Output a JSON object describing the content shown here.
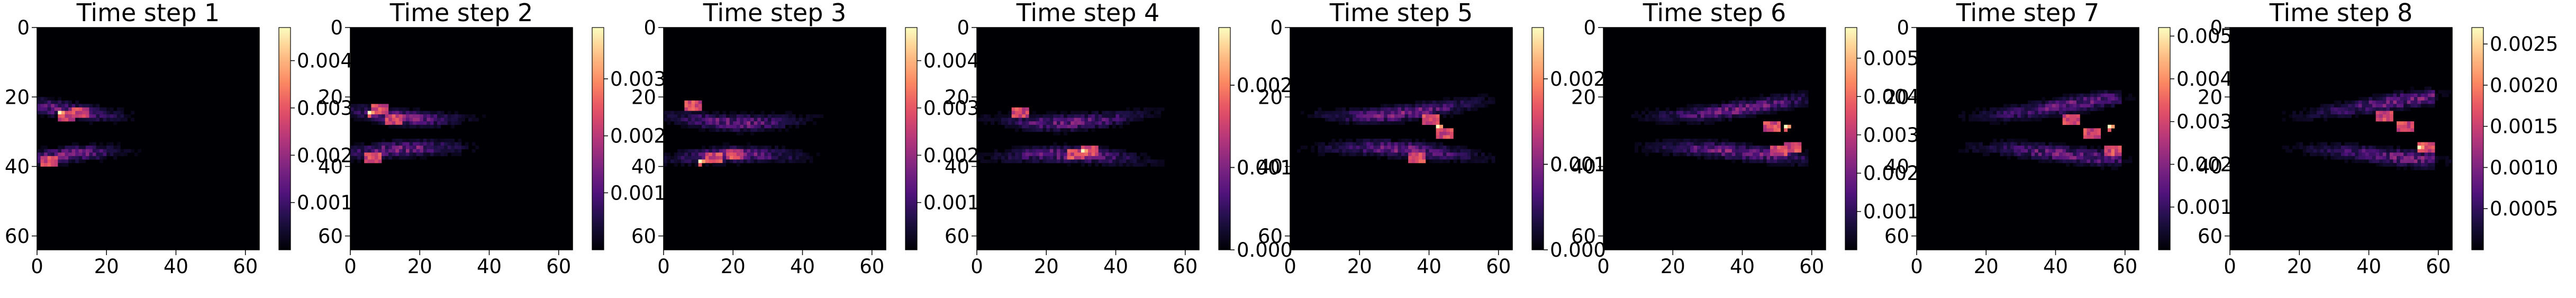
{
  "chart_data": [
    {
      "type": "heatmap",
      "title": "Time step 1",
      "xlim": [
        0,
        64
      ],
      "ylim": [
        64,
        0
      ],
      "x_ticks": [
        0,
        20,
        40,
        60
      ],
      "y_ticks": [
        0,
        20,
        40,
        60
      ],
      "colormap": "magma",
      "colorbar_ticks": [
        "0.001",
        "0.002",
        "0.003",
        "0.004"
      ],
      "colorbar_range": [
        0,
        0.0047
      ],
      "features": {
        "upper_y": 22,
        "lower_y": 37,
        "peak": [
          6,
          24
        ],
        "peak_value": 0.0047,
        "hot_spots": [
          [
            8,
            25
          ],
          [
            12,
            24
          ],
          [
            3,
            38
          ]
        ]
      }
    },
    {
      "type": "heatmap",
      "title": "Time step 2",
      "xlim": [
        0,
        64
      ],
      "ylim": [
        64,
        0
      ],
      "x_ticks": [
        0,
        20,
        40,
        60
      ],
      "y_ticks": [
        0,
        20,
        40,
        60
      ],
      "colormap": "magma",
      "colorbar_ticks": [
        "0.001",
        "0.002",
        "0.003"
      ],
      "colorbar_range": [
        0,
        0.0039
      ],
      "features": {
        "upper_y": 23,
        "lower_y": 36,
        "peak": [
          5,
          24
        ],
        "peak_value": 0.0039,
        "hot_spots": [
          [
            8,
            23
          ],
          [
            12,
            26
          ],
          [
            6,
            37
          ]
        ]
      }
    },
    {
      "type": "heatmap",
      "title": "Time step 3",
      "xlim": [
        0,
        64
      ],
      "ylim": [
        64,
        0
      ],
      "x_ticks": [
        0,
        20,
        40,
        60
      ],
      "y_ticks": [
        0,
        20,
        40,
        60
      ],
      "colormap": "magma",
      "colorbar_ticks": [
        "0.001",
        "0.002",
        "0.003",
        "0.004"
      ],
      "colorbar_range": [
        0,
        0.0047
      ],
      "features": {
        "upper_y": 24,
        "lower_y": 38,
        "peak": [
          10,
          38
        ],
        "peak_value": 0.0047,
        "hot_spots": [
          [
            8,
            22
          ],
          [
            14,
            37
          ],
          [
            20,
            36
          ]
        ]
      }
    },
    {
      "type": "heatmap",
      "title": "Time step 4",
      "xlim": [
        0,
        64
      ],
      "ylim": [
        64,
        0
      ],
      "x_ticks": [
        0,
        20,
        40,
        60
      ],
      "y_ticks": [
        0,
        20,
        40,
        60
      ],
      "colormap": "magma",
      "colorbar_ticks": [
        "0.000",
        "0.001",
        "0.001",
        "0.002",
        "0.002"
      ],
      "colorbar_range": [
        0,
        0.0027
      ],
      "features": {
        "upper_y": 24,
        "lower_y": 38,
        "peak": [
          30,
          35
        ],
        "peak_value": 0.0027,
        "hot_spots": [
          [
            28,
            36
          ],
          [
            32,
            35
          ],
          [
            12,
            24
          ]
        ]
      }
    },
    {
      "type": "heatmap",
      "title": "Time step 5",
      "xlim": [
        0,
        64
      ],
      "ylim": [
        64,
        0
      ],
      "x_ticks": [
        0,
        20,
        40,
        60
      ],
      "y_ticks": [
        0,
        20,
        40,
        60
      ],
      "colormap": "magma",
      "colorbar_ticks": [
        "0.000",
        "0.001",
        "0.001",
        "0.002"
      ],
      "colorbar_range": [
        0,
        0.0026
      ],
      "features": {
        "upper_y": 22,
        "lower_y": 36,
        "peak": [
          42,
          28
        ],
        "peak_value": 0.0026,
        "hot_spots": [
          [
            40,
            26
          ],
          [
            44,
            30
          ],
          [
            36,
            37
          ]
        ]
      }
    },
    {
      "type": "heatmap",
      "title": "Time step 6",
      "xlim": [
        0,
        64
      ],
      "ylim": [
        64,
        0
      ],
      "x_ticks": [
        0,
        20,
        40,
        60
      ],
      "y_ticks": [
        0,
        20,
        40,
        60
      ],
      "colormap": "magma",
      "colorbar_ticks": [
        "0.001",
        "0.002",
        "0.003",
        "0.004",
        "0.005"
      ],
      "colorbar_range": [
        0,
        0.0058
      ],
      "features": {
        "upper_y": 22,
        "lower_y": 36,
        "peak": [
          52,
          28
        ],
        "peak_value": 0.0058,
        "hot_spots": [
          [
            48,
            28
          ],
          [
            54,
            34
          ],
          [
            50,
            35
          ]
        ]
      }
    },
    {
      "type": "heatmap",
      "title": "Time step 7",
      "xlim": [
        0,
        64
      ],
      "ylim": [
        64,
        0
      ],
      "x_ticks": [
        0,
        20,
        40,
        60
      ],
      "y_ticks": [
        0,
        20,
        40,
        60
      ],
      "colormap": "magma",
      "colorbar_ticks": [
        "0.001",
        "0.002",
        "0.003",
        "0.004",
        "0.005"
      ],
      "colorbar_range": [
        0,
        0.0052
      ],
      "features": {
        "upper_y": 22,
        "lower_y": 36,
        "peak": [
          55,
          28
        ],
        "peak_value": 0.0052,
        "hot_spots": [
          [
            50,
            30
          ],
          [
            56,
            35
          ],
          [
            44,
            26
          ]
        ]
      }
    },
    {
      "type": "heatmap",
      "title": "Time step 8",
      "xlim": [
        0,
        64
      ],
      "ylim": [
        64,
        0
      ],
      "x_ticks": [
        0,
        20,
        40,
        60
      ],
      "y_ticks": [
        0,
        20,
        40,
        60
      ],
      "colormap": "magma",
      "colorbar_ticks": [
        "0.0005",
        "0.0010",
        "0.0015",
        "0.0020",
        "0.0025"
      ],
      "colorbar_range": [
        0,
        0.0027
      ],
      "features": {
        "upper_y": 22,
        "lower_y": 36,
        "peak": [
          54,
          34
        ],
        "peak_value": 0.0027,
        "hot_spots": [
          [
            50,
            28
          ],
          [
            56,
            34
          ],
          [
            44,
            25
          ]
        ]
      }
    }
  ]
}
